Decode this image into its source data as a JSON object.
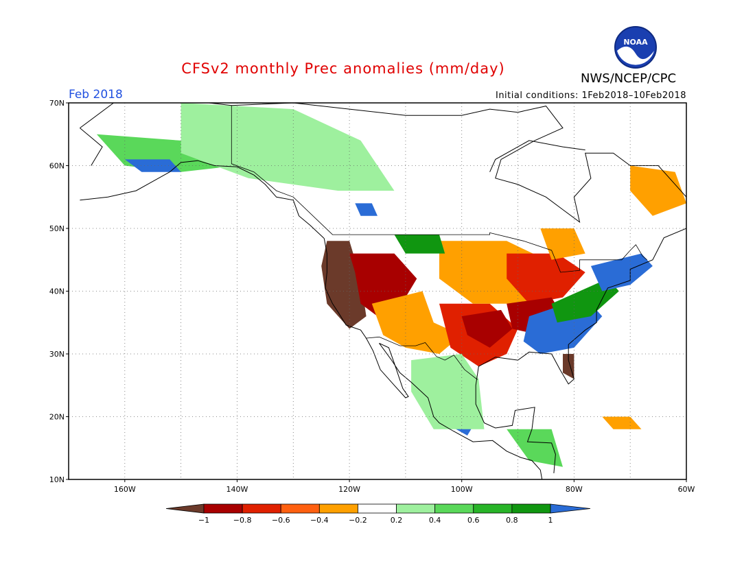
{
  "header": {
    "title": "CFSv2 monthly Prec anomalies (mm/day)",
    "valid_month": "Feb 2018",
    "initial_conditions": "Initial conditions: 1Feb2018–10Feb2018",
    "agency": "NWS/NCEP/CPC",
    "logo_text": "NOAA"
  },
  "axes": {
    "lat_labels": [
      "70N",
      "60N",
      "50N",
      "40N",
      "30N",
      "20N",
      "10N"
    ],
    "lon_labels": [
      "160W",
      "140W",
      "120W",
      "100W",
      "80W",
      "60W"
    ],
    "lat_range": [
      10,
      70
    ],
    "lon_range": [
      -170,
      -60
    ]
  },
  "colorbar": {
    "labels": [
      "−1",
      "−0.8",
      "−0.6",
      "−0.4",
      "−0.2",
      "0.2",
      "0.4",
      "0.6",
      "0.8",
      "1"
    ],
    "colors": [
      "#6b3a2a",
      "#a80000",
      "#e02000",
      "#ff6010",
      "#ffa000",
      "#ffffff",
      "#9ef09e",
      "#5ad85a",
      "#28b428",
      "#109610",
      "#2a6cd6"
    ]
  },
  "anomaly_regions": [
    {
      "name": "pacific-northwest-california",
      "category": "-1",
      "color": "#6b3a2a",
      "points": [
        [
          -124,
          48
        ],
        [
          -120,
          48
        ],
        [
          -118,
          42
        ],
        [
          -117,
          36
        ],
        [
          -120,
          34
        ],
        [
          -124,
          38
        ],
        [
          -125,
          44
        ]
      ]
    },
    {
      "name": "great-basin",
      "category": "-0.8",
      "color": "#a80000",
      "points": [
        [
          -120,
          46
        ],
        [
          -112,
          46
        ],
        [
          -108,
          42
        ],
        [
          -110,
          39
        ],
        [
          -115,
          36
        ],
        [
          -118,
          38
        ],
        [
          -119,
          43
        ]
      ]
    },
    {
      "name": "southwest",
      "category": "-0.4",
      "color": "#ffa000",
      "points": [
        [
          -116,
          38
        ],
        [
          -107,
          40
        ],
        [
          -105,
          35
        ],
        [
          -100,
          33
        ],
        [
          -104,
          30
        ],
        [
          -110,
          31
        ],
        [
          -114,
          33
        ]
      ]
    },
    {
      "name": "southern-plains",
      "category": "-0.6",
      "color": "#e02000",
      "points": [
        [
          -104,
          38
        ],
        [
          -95,
          38
        ],
        [
          -90,
          34
        ],
        [
          -92,
          30
        ],
        [
          -97,
          28
        ],
        [
          -102,
          31
        ]
      ]
    },
    {
      "name": "central-plains-red",
      "category": "-0.8",
      "color": "#a80000",
      "points": [
        [
          -100,
          36
        ],
        [
          -93,
          37
        ],
        [
          -91,
          34
        ],
        [
          -95,
          31
        ],
        [
          -99,
          33
        ]
      ]
    },
    {
      "name": "midwest",
      "category": "-0.4",
      "color": "#ffa000",
      "points": [
        [
          -104,
          48
        ],
        [
          -92,
          48
        ],
        [
          -85,
          45
        ],
        [
          -83,
          40
        ],
        [
          -90,
          38
        ],
        [
          -98,
          38
        ],
        [
          -104,
          42
        ]
      ]
    },
    {
      "name": "great-lakes",
      "category": "-0.6",
      "color": "#e02000",
      "points": [
        [
          -92,
          46
        ],
        [
          -83,
          46
        ],
        [
          -78,
          43
        ],
        [
          -82,
          39
        ],
        [
          -88,
          38
        ],
        [
          -92,
          42
        ]
      ]
    },
    {
      "name": "ohio-valley",
      "category": "-0.8",
      "color": "#a80000",
      "points": [
        [
          -92,
          38
        ],
        [
          -84,
          39
        ],
        [
          -82,
          36
        ],
        [
          -86,
          33
        ],
        [
          -91,
          34
        ]
      ]
    },
    {
      "name": "southeast",
      "category": "1",
      "color": "#2a6cd6",
      "points": [
        [
          -88,
          36
        ],
        [
          -78,
          39
        ],
        [
          -75,
          36
        ],
        [
          -80,
          31
        ],
        [
          -86,
          30
        ],
        [
          -89,
          32
        ]
      ]
    },
    {
      "name": "mid-atlantic",
      "category": "0.8",
      "color": "#109610",
      "points": [
        [
          -84,
          38
        ],
        [
          -74,
          42
        ],
        [
          -72,
          40
        ],
        [
          -77,
          36
        ],
        [
          -83,
          35
        ]
      ]
    },
    {
      "name": "northeast",
      "category": "1",
      "color": "#2a6cd6",
      "points": [
        [
          -77,
          44
        ],
        [
          -68,
          46
        ],
        [
          -66,
          44
        ],
        [
          -70,
          41
        ],
        [
          -75,
          40
        ]
      ]
    },
    {
      "name": "florida",
      "category": "-1",
      "color": "#6b3a2a",
      "points": [
        [
          -82,
          30
        ],
        [
          -80,
          30
        ],
        [
          -80,
          26
        ],
        [
          -82,
          27
        ]
      ]
    },
    {
      "name": "mexico",
      "category": "1",
      "color": "#2a6cd6",
      "points": [
        [
          -106,
          25
        ],
        [
          -100,
          25
        ],
        [
          -97,
          20
        ],
        [
          -99,
          17
        ],
        [
          -103,
          19
        ],
        [
          -106,
          22
        ]
      ]
    },
    {
      "name": "mexico-green",
      "category": "0.4",
      "color": "#9ef09e",
      "points": [
        [
          -109,
          29
        ],
        [
          -100,
          30
        ],
        [
          -97,
          26
        ],
        [
          -96,
          18
        ],
        [
          -105,
          18
        ],
        [
          -109,
          24
        ]
      ]
    },
    {
      "name": "alaska",
      "category": "0.6",
      "color": "#5ad85a",
      "points": [
        [
          -165,
          65
        ],
        [
          -150,
          64
        ],
        [
          -140,
          60
        ],
        [
          -150,
          59
        ],
        [
          -160,
          60
        ]
      ]
    },
    {
      "name": "alaska-south",
      "category": "1",
      "color": "#2a6cd6",
      "points": [
        [
          -160,
          61
        ],
        [
          -152,
          61
        ],
        [
          -150,
          59
        ],
        [
          -157,
          59
        ]
      ]
    },
    {
      "name": "western-canada",
      "category": "0.4",
      "color": "#9ef09e",
      "points": [
        [
          -150,
          70
        ],
        [
          -130,
          69
        ],
        [
          -118,
          64
        ],
        [
          -112,
          56
        ],
        [
          -122,
          56
        ],
        [
          -138,
          58
        ],
        [
          -150,
          62
        ]
      ]
    },
    {
      "name": "bc-interior",
      "category": "1",
      "color": "#2a6cd6",
      "points": [
        [
          -119,
          54
        ],
        [
          -116,
          54
        ],
        [
          -115,
          52
        ],
        [
          -118,
          52
        ]
      ]
    },
    {
      "name": "northern-plains",
      "category": "0.8",
      "color": "#109610",
      "points": [
        [
          -112,
          49
        ],
        [
          -104,
          49
        ],
        [
          -103,
          46
        ],
        [
          -110,
          46
        ]
      ]
    },
    {
      "name": "labrador",
      "category": "-0.4",
      "color": "#ffa000",
      "points": [
        [
          -70,
          60
        ],
        [
          -62,
          59
        ],
        [
          -60,
          54
        ],
        [
          -66,
          52
        ],
        [
          -70,
          56
        ]
      ]
    },
    {
      "name": "eastern-canada",
      "category": "-0.4",
      "color": "#ffa000",
      "points": [
        [
          -86,
          50
        ],
        [
          -80,
          50
        ],
        [
          -78,
          46
        ],
        [
          -84,
          45
        ]
      ]
    },
    {
      "name": "caribbean",
      "category": "-0.4",
      "color": "#ffa000",
      "points": [
        [
          -75,
          20
        ],
        [
          -70,
          20
        ],
        [
          -68,
          18
        ],
        [
          -73,
          18
        ]
      ]
    },
    {
      "name": "central-america",
      "category": "0.6",
      "color": "#5ad85a",
      "points": [
        [
          -92,
          18
        ],
        [
          -84,
          18
        ],
        [
          -82,
          12
        ],
        [
          -88,
          13
        ]
      ]
    }
  ]
}
